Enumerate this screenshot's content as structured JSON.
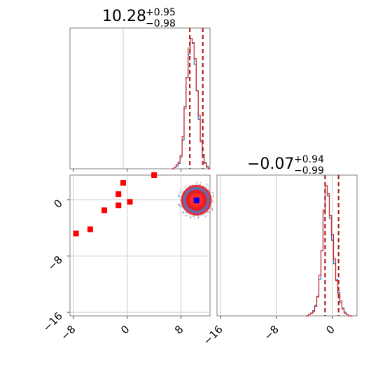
{
  "chart_data": {
    "type": "corner",
    "parameters": [
      {
        "title_main": "10.28",
        "title_plus": "+0.95",
        "title_minus": "−0.98",
        "median": 10.28,
        "quantile_low": 9.3,
        "quantile_high": 11.23,
        "range": [
          -8.5,
          12.3
        ],
        "hist_bins_x": [
          6.8,
          7.1,
          7.4,
          7.7,
          8.0,
          8.3,
          8.6,
          8.9,
          9.2,
          9.5,
          9.8,
          10.1,
          10.4,
          10.7,
          11.0,
          11.3,
          11.6,
          11.9,
          12.2
        ],
        "hist_blue": [
          0,
          1,
          2,
          4,
          9,
          22,
          48,
          70,
          88,
          100,
          96,
          80,
          60,
          38,
          22,
          11,
          5,
          2,
          0
        ],
        "hist_red": [
          0,
          1,
          3,
          5,
          10,
          24,
          45,
          68,
          90,
          97,
          94,
          82,
          58,
          40,
          20,
          10,
          4,
          1,
          0
        ]
      },
      {
        "title_main": "−0.07",
        "title_plus": "+0.94",
        "title_minus": "−0.99",
        "median": -0.07,
        "quantile_low": -1.06,
        "quantile_high": 0.87,
        "range": [
          -16.5,
          3.5
        ],
        "hist_bins_x": [
          -3.6,
          -3.3,
          -3.0,
          -2.7,
          -2.4,
          -2.1,
          -1.8,
          -1.5,
          -1.2,
          -0.9,
          -0.6,
          -0.3,
          0.0,
          0.3,
          0.6,
          0.9,
          1.2,
          1.5,
          1.8,
          2.1,
          2.4,
          2.7
        ],
        "hist_blue": [
          0,
          1,
          2,
          4,
          8,
          15,
          28,
          50,
          80,
          100,
          92,
          75,
          58,
          40,
          28,
          18,
          10,
          6,
          3,
          1,
          0,
          0
        ],
        "hist_red": [
          0,
          1,
          2,
          3,
          7,
          14,
          30,
          48,
          78,
          96,
          90,
          74,
          60,
          42,
          26,
          16,
          11,
          5,
          2,
          1,
          0,
          0
        ]
      }
    ],
    "scatter_2d": {
      "x_range": [
        -8.5,
        12.3
      ],
      "y_range": [
        -16.5,
        3.5
      ],
      "x_ticks": [
        -8,
        0,
        8
      ],
      "y_ticks": [
        0,
        -8,
        -16
      ],
      "x_tick_labels": [
        "−8",
        "0",
        "8"
      ],
      "y_tick_labels": [
        "0",
        "−8",
        "−16"
      ],
      "bottom_right_x_ticks": [
        -16,
        -8,
        0
      ],
      "bottom_right_x_tick_labels": [
        "−16",
        "−8",
        "0"
      ],
      "blob_center": [
        10.28,
        -0.07
      ],
      "blue_marker": [
        10.3,
        -0.1
      ],
      "red_squares": [
        {
          "x": -7.6,
          "y": -4.8
        },
        {
          "x": -5.5,
          "y": -4.2
        },
        {
          "x": -3.4,
          "y": -1.5
        },
        {
          "x": -1.3,
          "y": 0.8
        },
        {
          "x": -1.3,
          "y": -0.8
        },
        {
          "x": -0.6,
          "y": 2.4
        },
        {
          "x": 0.4,
          "y": -0.3
        },
        {
          "x": 4.0,
          "y": 3.5
        }
      ]
    },
    "colors": {
      "blue": "#1f77b4",
      "red": "#d62728",
      "dashed_line": "#b22222",
      "grid": "#c8c8c8",
      "blob_outer": "#8fa8d8",
      "blob_mid": "#5b6fc4",
      "blob_red": "#e02020",
      "marker_blue": "#0000ff",
      "marker_red": "#ff0000"
    }
  }
}
